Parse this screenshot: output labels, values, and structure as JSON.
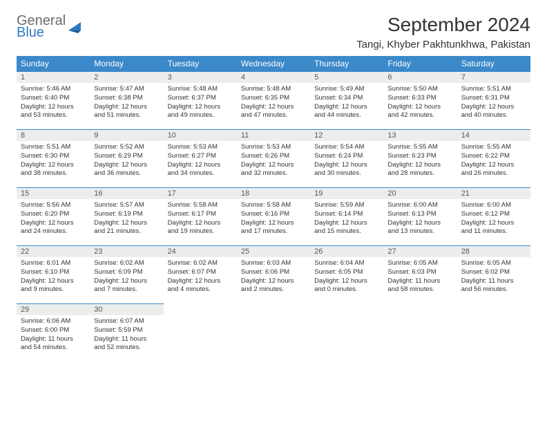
{
  "logo": {
    "general": "General",
    "blue": "Blue"
  },
  "title": "September 2024",
  "location": "Tangi, Khyber Pakhtunkhwa, Pakistan",
  "colors": {
    "header_bg": "#3b89c9",
    "header_text": "#ffffff",
    "daynum_bg": "#eceeee",
    "text": "#333333",
    "border": "#3b89c9",
    "logo_gray": "#6b6b6b",
    "logo_blue": "#2f79c2"
  },
  "weekdays": [
    "Sunday",
    "Monday",
    "Tuesday",
    "Wednesday",
    "Thursday",
    "Friday",
    "Saturday"
  ],
  "grid": [
    [
      {
        "n": "1",
        "sr": "Sunrise: 5:46 AM",
        "ss": "Sunset: 6:40 PM",
        "d1": "Daylight: 12 hours",
        "d2": "and 53 minutes."
      },
      {
        "n": "2",
        "sr": "Sunrise: 5:47 AM",
        "ss": "Sunset: 6:38 PM",
        "d1": "Daylight: 12 hours",
        "d2": "and 51 minutes."
      },
      {
        "n": "3",
        "sr": "Sunrise: 5:48 AM",
        "ss": "Sunset: 6:37 PM",
        "d1": "Daylight: 12 hours",
        "d2": "and 49 minutes."
      },
      {
        "n": "4",
        "sr": "Sunrise: 5:48 AM",
        "ss": "Sunset: 6:35 PM",
        "d1": "Daylight: 12 hours",
        "d2": "and 47 minutes."
      },
      {
        "n": "5",
        "sr": "Sunrise: 5:49 AM",
        "ss": "Sunset: 6:34 PM",
        "d1": "Daylight: 12 hours",
        "d2": "and 44 minutes."
      },
      {
        "n": "6",
        "sr": "Sunrise: 5:50 AM",
        "ss": "Sunset: 6:33 PM",
        "d1": "Daylight: 12 hours",
        "d2": "and 42 minutes."
      },
      {
        "n": "7",
        "sr": "Sunrise: 5:51 AM",
        "ss": "Sunset: 6:31 PM",
        "d1": "Daylight: 12 hours",
        "d2": "and 40 minutes."
      }
    ],
    [
      {
        "n": "8",
        "sr": "Sunrise: 5:51 AM",
        "ss": "Sunset: 6:30 PM",
        "d1": "Daylight: 12 hours",
        "d2": "and 38 minutes."
      },
      {
        "n": "9",
        "sr": "Sunrise: 5:52 AM",
        "ss": "Sunset: 6:29 PM",
        "d1": "Daylight: 12 hours",
        "d2": "and 36 minutes."
      },
      {
        "n": "10",
        "sr": "Sunrise: 5:53 AM",
        "ss": "Sunset: 6:27 PM",
        "d1": "Daylight: 12 hours",
        "d2": "and 34 minutes."
      },
      {
        "n": "11",
        "sr": "Sunrise: 5:53 AM",
        "ss": "Sunset: 6:26 PM",
        "d1": "Daylight: 12 hours",
        "d2": "and 32 minutes."
      },
      {
        "n": "12",
        "sr": "Sunrise: 5:54 AM",
        "ss": "Sunset: 6:24 PM",
        "d1": "Daylight: 12 hours",
        "d2": "and 30 minutes."
      },
      {
        "n": "13",
        "sr": "Sunrise: 5:55 AM",
        "ss": "Sunset: 6:23 PM",
        "d1": "Daylight: 12 hours",
        "d2": "and 28 minutes."
      },
      {
        "n": "14",
        "sr": "Sunrise: 5:55 AM",
        "ss": "Sunset: 6:22 PM",
        "d1": "Daylight: 12 hours",
        "d2": "and 26 minutes."
      }
    ],
    [
      {
        "n": "15",
        "sr": "Sunrise: 5:56 AM",
        "ss": "Sunset: 6:20 PM",
        "d1": "Daylight: 12 hours",
        "d2": "and 24 minutes."
      },
      {
        "n": "16",
        "sr": "Sunrise: 5:57 AM",
        "ss": "Sunset: 6:19 PM",
        "d1": "Daylight: 12 hours",
        "d2": "and 21 minutes."
      },
      {
        "n": "17",
        "sr": "Sunrise: 5:58 AM",
        "ss": "Sunset: 6:17 PM",
        "d1": "Daylight: 12 hours",
        "d2": "and 19 minutes."
      },
      {
        "n": "18",
        "sr": "Sunrise: 5:58 AM",
        "ss": "Sunset: 6:16 PM",
        "d1": "Daylight: 12 hours",
        "d2": "and 17 minutes."
      },
      {
        "n": "19",
        "sr": "Sunrise: 5:59 AM",
        "ss": "Sunset: 6:14 PM",
        "d1": "Daylight: 12 hours",
        "d2": "and 15 minutes."
      },
      {
        "n": "20",
        "sr": "Sunrise: 6:00 AM",
        "ss": "Sunset: 6:13 PM",
        "d1": "Daylight: 12 hours",
        "d2": "and 13 minutes."
      },
      {
        "n": "21",
        "sr": "Sunrise: 6:00 AM",
        "ss": "Sunset: 6:12 PM",
        "d1": "Daylight: 12 hours",
        "d2": "and 11 minutes."
      }
    ],
    [
      {
        "n": "22",
        "sr": "Sunrise: 6:01 AM",
        "ss": "Sunset: 6:10 PM",
        "d1": "Daylight: 12 hours",
        "d2": "and 9 minutes."
      },
      {
        "n": "23",
        "sr": "Sunrise: 6:02 AM",
        "ss": "Sunset: 6:09 PM",
        "d1": "Daylight: 12 hours",
        "d2": "and 7 minutes."
      },
      {
        "n": "24",
        "sr": "Sunrise: 6:02 AM",
        "ss": "Sunset: 6:07 PM",
        "d1": "Daylight: 12 hours",
        "d2": "and 4 minutes."
      },
      {
        "n": "25",
        "sr": "Sunrise: 6:03 AM",
        "ss": "Sunset: 6:06 PM",
        "d1": "Daylight: 12 hours",
        "d2": "and 2 minutes."
      },
      {
        "n": "26",
        "sr": "Sunrise: 6:04 AM",
        "ss": "Sunset: 6:05 PM",
        "d1": "Daylight: 12 hours",
        "d2": "and 0 minutes."
      },
      {
        "n": "27",
        "sr": "Sunrise: 6:05 AM",
        "ss": "Sunset: 6:03 PM",
        "d1": "Daylight: 11 hours",
        "d2": "and 58 minutes."
      },
      {
        "n": "28",
        "sr": "Sunrise: 6:05 AM",
        "ss": "Sunset: 6:02 PM",
        "d1": "Daylight: 11 hours",
        "d2": "and 56 minutes."
      }
    ],
    [
      {
        "n": "29",
        "sr": "Sunrise: 6:06 AM",
        "ss": "Sunset: 6:00 PM",
        "d1": "Daylight: 11 hours",
        "d2": "and 54 minutes."
      },
      {
        "n": "30",
        "sr": "Sunrise: 6:07 AM",
        "ss": "Sunset: 5:59 PM",
        "d1": "Daylight: 11 hours",
        "d2": "and 52 minutes."
      },
      null,
      null,
      null,
      null,
      null
    ]
  ]
}
